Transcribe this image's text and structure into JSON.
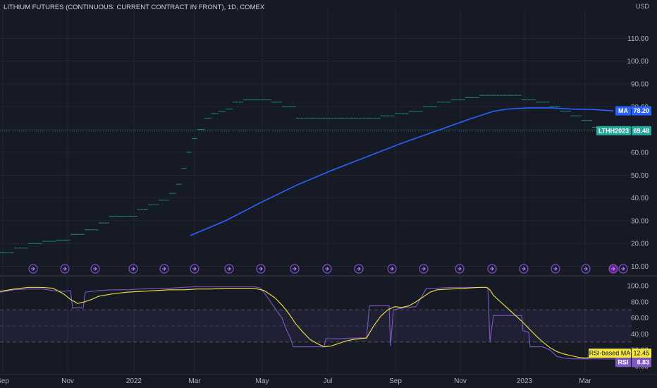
{
  "title": "LITHIUM FUTURES (CONTINUOUS: CURRENT CONTRACT IN FRONT), 1D, COMEX",
  "price_unit": "USD",
  "colors": {
    "background": "#161a25",
    "price": "#26a69a",
    "ma": "#2962ff",
    "rsi": "#7e57c2",
    "rsi_ma": "#f5e642",
    "grid": "#232735",
    "event": "#7e57c2"
  },
  "chart_data": [
    {
      "type": "line",
      "name": "price-panel",
      "ylim": [
        8,
        120
      ],
      "yticks": [
        "10.00",
        "20.00",
        "30.00",
        "40.00",
        "50.00",
        "60.00",
        "70.00",
        "80.00",
        "90.00",
        "100.00",
        "110.00"
      ],
      "x_ticks": [
        "Sep",
        "Nov",
        "2022",
        "Mar",
        "May",
        "Jul",
        "Sep",
        "Nov",
        "2023",
        "Mar"
      ],
      "series": [
        {
          "name": "LTHH2023",
          "last_value": "69.48",
          "points": [
            [
              0,
              16
            ],
            [
              20,
              18
            ],
            [
              40,
              20
            ],
            [
              60,
              21
            ],
            [
              80,
              21.5
            ],
            [
              100,
              24
            ],
            [
              120,
              26
            ],
            [
              140,
              29
            ],
            [
              155,
              32
            ],
            [
              170,
              32
            ],
            [
              185,
              32
            ],
            [
              195,
              35
            ],
            [
              210,
              37
            ],
            [
              225,
              39
            ],
            [
              240,
              42
            ],
            [
              250,
              46
            ],
            [
              258,
              53
            ],
            [
              265,
              60
            ],
            [
              272,
              66
            ],
            [
              280,
              70
            ],
            [
              290,
              75
            ],
            [
              300,
              77
            ],
            [
              310,
              78
            ],
            [
              320,
              79
            ],
            [
              330,
              82
            ],
            [
              345,
              83
            ],
            [
              360,
              83
            ],
            [
              372,
              83
            ],
            [
              385,
              82
            ],
            [
              400,
              80
            ],
            [
              420,
              75
            ],
            [
              440,
              75
            ],
            [
              460,
              75
            ],
            [
              480,
              75
            ],
            [
              500,
              75
            ],
            [
              520,
              75
            ],
            [
              540,
              76
            ],
            [
              560,
              77
            ],
            [
              580,
              78
            ],
            [
              600,
              80
            ],
            [
              620,
              82
            ],
            [
              640,
              83
            ],
            [
              660,
              84
            ],
            [
              680,
              85
            ],
            [
              700,
              85
            ],
            [
              720,
              85
            ],
            [
              740,
              83
            ],
            [
              760,
              82
            ],
            [
              780,
              80
            ],
            [
              795,
              78
            ],
            [
              810,
              76
            ],
            [
              825,
              74
            ],
            [
              840,
              71
            ],
            [
              850,
              69.48
            ]
          ]
        },
        {
          "name": "MA",
          "last_value": "78.20",
          "points": [
            [
              270,
              23.5
            ],
            [
              320,
              30
            ],
            [
              370,
              38
            ],
            [
              420,
              45.5
            ],
            [
              470,
              52
            ],
            [
              520,
              58
            ],
            [
              570,
              64
            ],
            [
              620,
              69.5
            ],
            [
              670,
              75
            ],
            [
              700,
              78
            ],
            [
              720,
              79
            ],
            [
              750,
              79.5
            ],
            [
              780,
              79.5
            ],
            [
              810,
              79
            ],
            [
              840,
              78.8
            ],
            [
              870,
              78.2
            ]
          ]
        }
      ],
      "events_x": [
        47,
        92,
        135,
        189,
        233,
        276,
        325,
        370,
        418,
        464,
        509,
        556,
        601,
        652,
        698,
        743,
        788,
        831,
        870,
        884
      ]
    },
    {
      "type": "line",
      "name": "rsi-panel",
      "ylim": [
        -8,
        108
      ],
      "yticks": [
        "0.00",
        "20.00",
        "40.00",
        "60.00",
        "80.00",
        "100.00"
      ],
      "bands": {
        "upper": 70,
        "middle": 50,
        "lower": 30
      },
      "series": [
        {
          "name": "RSI",
          "last_value": "8.83",
          "points": [
            [
              0,
              92
            ],
            [
              20,
              95
            ],
            [
              40,
              96
            ],
            [
              60,
              96
            ],
            [
              75,
              94
            ],
            [
              90,
              93
            ],
            [
              100,
              94
            ],
            [
              103,
              72
            ],
            [
              110,
              73
            ],
            [
              118,
              72
            ],
            [
              121,
              92
            ],
            [
              140,
              94
            ],
            [
              160,
              95
            ],
            [
              180,
              95
            ],
            [
              200,
              96
            ],
            [
              220,
              97
            ],
            [
              240,
              97
            ],
            [
              260,
              98
            ],
            [
              280,
              99
            ],
            [
              300,
              99
            ],
            [
              320,
              99
            ],
            [
              340,
              99
            ],
            [
              360,
              99
            ],
            [
              370,
              97
            ],
            [
              380,
              85
            ],
            [
              390,
              72
            ],
            [
              400,
              60
            ],
            [
              404,
              50
            ],
            [
              408,
              42
            ],
            [
              412,
              35
            ],
            [
              416,
              24
            ],
            [
              440,
              24
            ],
            [
              460,
              24
            ],
            [
              462,
              34
            ],
            [
              480,
              34
            ],
            [
              500,
              35
            ],
            [
              520,
              35
            ],
            [
              524,
              75
            ],
            [
              540,
              75
            ],
            [
              552,
              75
            ],
            [
              554,
              25
            ],
            [
              558,
              70
            ],
            [
              570,
              72
            ],
            [
              590,
              74
            ],
            [
              605,
              97
            ],
            [
              620,
              97
            ],
            [
              640,
              98
            ],
            [
              660,
              98
            ],
            [
              680,
              98
            ],
            [
              692,
              98
            ],
            [
              695,
              30
            ],
            [
              700,
              63
            ],
            [
              720,
              63
            ],
            [
              740,
              63
            ],
            [
              742,
              44
            ],
            [
              750,
              42
            ],
            [
              752,
              24
            ],
            [
              770,
              24
            ],
            [
              780,
              20
            ],
            [
              790,
              12
            ],
            [
              800,
              10
            ],
            [
              810,
              9
            ],
            [
              820,
              9
            ],
            [
              840,
              9
            ],
            [
              860,
              8.8
            ],
            [
              880,
              8.83
            ]
          ]
        },
        {
          "name": "RSI-based MA",
          "last_value": "12.45",
          "points": [
            [
              0,
              93
            ],
            [
              20,
              96
            ],
            [
              40,
              98
            ],
            [
              60,
              98
            ],
            [
              75,
              97
            ],
            [
              90,
              90
            ],
            [
              100,
              83
            ],
            [
              110,
              78
            ],
            [
              120,
              80
            ],
            [
              130,
              83
            ],
            [
              140,
              87
            ],
            [
              160,
              90
            ],
            [
              180,
              92
            ],
            [
              200,
              93
            ],
            [
              220,
              94
            ],
            [
              240,
              95
            ],
            [
              260,
              95
            ],
            [
              280,
              96
            ],
            [
              300,
              96
            ],
            [
              320,
              97
            ],
            [
              340,
              97
            ],
            [
              360,
              97
            ],
            [
              375,
              94
            ],
            [
              390,
              85
            ],
            [
              400,
              76
            ],
            [
              410,
              65
            ],
            [
              420,
              52
            ],
            [
              430,
              42
            ],
            [
              440,
              33
            ],
            [
              450,
              28
            ],
            [
              460,
              24
            ],
            [
              470,
              25
            ],
            [
              480,
              28
            ],
            [
              490,
              31
            ],
            [
              500,
              33
            ],
            [
              510,
              34
            ],
            [
              520,
              35
            ],
            [
              530,
              50
            ],
            [
              540,
              62
            ],
            [
              550,
              70
            ],
            [
              560,
              74
            ],
            [
              570,
              73
            ],
            [
              580,
              75
            ],
            [
              590,
              80
            ],
            [
              600,
              86
            ],
            [
              610,
              92
            ],
            [
              620,
              95
            ],
            [
              640,
              96
            ],
            [
              660,
              97
            ],
            [
              680,
              98
            ],
            [
              690,
              98
            ],
            [
              695,
              95
            ],
            [
              700,
              88
            ],
            [
              710,
              80
            ],
            [
              720,
              72
            ],
            [
              730,
              64
            ],
            [
              740,
              56
            ],
            [
              750,
              47
            ],
            [
              760,
              38
            ],
            [
              770,
              30
            ],
            [
              780,
              23
            ],
            [
              790,
              18
            ],
            [
              800,
              15
            ],
            [
              810,
              13
            ],
            [
              820,
              11
            ],
            [
              830,
              10
            ],
            [
              840,
              11
            ],
            [
              850,
              12
            ],
            [
              860,
              12
            ],
            [
              880,
              12.45
            ]
          ]
        }
      ]
    }
  ]
}
